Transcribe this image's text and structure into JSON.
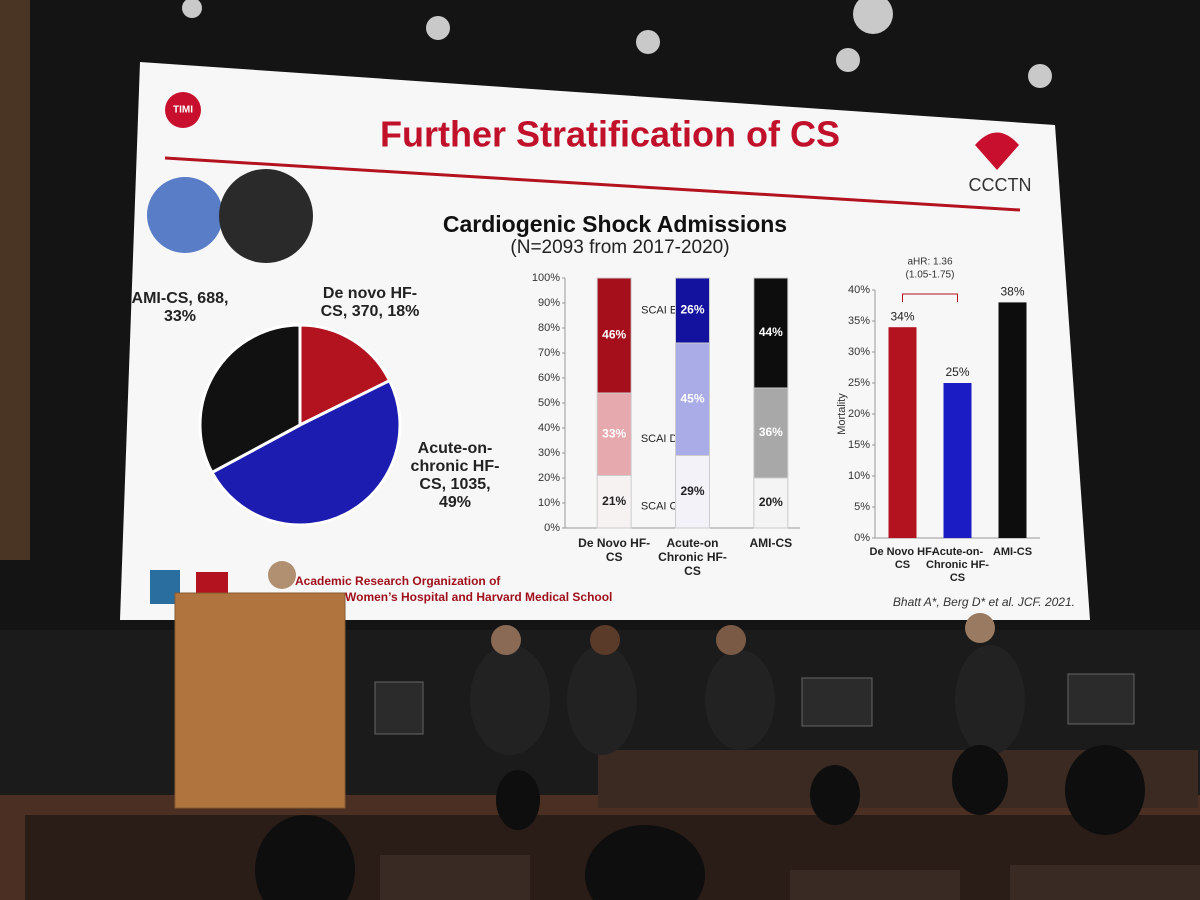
{
  "slide": {
    "logo_left": "TIMI",
    "title": "Further Stratification of CS",
    "logo_right": "CCCTN",
    "chart_title": "Cardiogenic Shock Admissions",
    "chart_subtitle": "(N=2093 from 2017-2020)",
    "footer_lines": [
      "Academic Research Organization of",
      "Women’s Hospital and Harvard Medical School"
    ],
    "citation": "Bhatt A*, Berg D* et al. JCF. 2021."
  },
  "chart_data": [
    {
      "type": "pie",
      "categories": [
        "De novo HF-CS, 370, 18%",
        "Acute-on-chronic HF-CS, 1035, 49%",
        "AMI-CS, 688, 33%"
      ],
      "values": [
        370,
        1035,
        688
      ],
      "colors": [
        "#b3121f",
        "#1c1cb0",
        "#111111"
      ]
    },
    {
      "type": "stacked-bar",
      "categories": [
        "De Novo HF-CS",
        "Acute-on Chronic HF-CS",
        "AMI-CS"
      ],
      "series": [
        {
          "name": "SCAI C",
          "colors": [
            "#f6f2f2",
            "#f2f2f8",
            "#f4f4f4"
          ],
          "values": [
            21,
            29,
            20
          ],
          "value_labels": [
            "21%",
            "29%",
            "20%"
          ]
        },
        {
          "name": "SCAI D",
          "colors": [
            "#e6a9ae",
            "#a9ace6",
            "#a8a8a8"
          ],
          "values": [
            33,
            45,
            36
          ],
          "value_labels": [
            "33%",
            "45%",
            "36%"
          ]
        },
        {
          "name": "SCAI E",
          "colors": [
            "#a50f1c",
            "#12129e",
            "#0d0d0d"
          ],
          "values": [
            46,
            26,
            44
          ],
          "value_labels": [
            "46%",
            "26%",
            "44%"
          ]
        }
      ],
      "ylim": [
        0,
        100
      ],
      "yticks": [
        {
          "value": 0,
          "label": "0%"
        },
        {
          "value": 10,
          "label": "10%"
        },
        {
          "value": 20,
          "label": "20%"
        },
        {
          "value": 30,
          "label": "30%"
        },
        {
          "value": 40,
          "label": "40%"
        },
        {
          "value": 50,
          "label": "50%"
        },
        {
          "value": 60,
          "label": "60%"
        },
        {
          "value": 70,
          "label": "70%"
        },
        {
          "value": 80,
          "label": "80%"
        },
        {
          "value": 90,
          "label": "90%"
        },
        {
          "value": 100,
          "label": "100%"
        }
      ]
    },
    {
      "type": "bar",
      "categories": [
        "De Novo HF-CS",
        "Acute-on-Chronic HF-CS",
        "AMI-CS"
      ],
      "values": [
        34,
        25,
        38
      ],
      "value_labels": [
        "34%",
        "25%",
        "38%"
      ],
      "colors": [
        "#b3121f",
        "#1c1cc4",
        "#0d0d0d"
      ],
      "y_label": "Mortality",
      "annotation": [
        "aHR: 1.36",
        "(1.05-1.75)"
      ],
      "ylim": [
        0,
        40
      ],
      "yticks": [
        {
          "value": 0,
          "label": "0%"
        },
        {
          "value": 5,
          "label": "5%"
        },
        {
          "value": 10,
          "label": "10%"
        },
        {
          "value": 15,
          "label": "15%"
        },
        {
          "value": 20,
          "label": "20%"
        },
        {
          "value": 25,
          "label": "25%"
        },
        {
          "value": 30,
          "label": "30%"
        },
        {
          "value": 35,
          "label": "35%"
        },
        {
          "value": 40,
          "label": "40%"
        }
      ]
    }
  ]
}
